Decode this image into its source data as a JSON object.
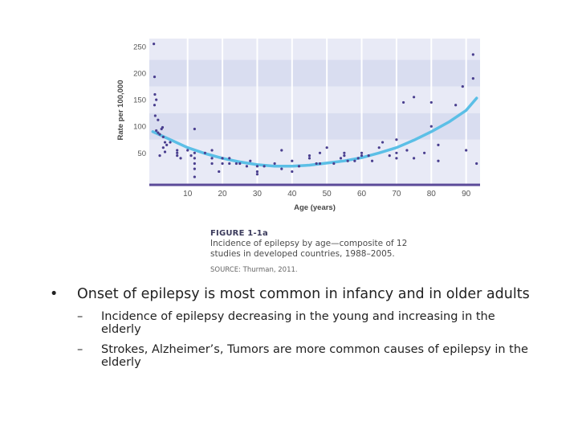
{
  "chart_data": {
    "type": "scatter",
    "ylabel": "Rate per 100,000",
    "xlabel": "Age (years)",
    "x_ticks": [
      10,
      20,
      30,
      40,
      50,
      60,
      70,
      80,
      90
    ],
    "y_ticks": [
      50,
      100,
      150,
      200,
      250
    ],
    "xlim": [
      -1,
      94
    ],
    "ylim": [
      -10,
      265
    ],
    "colors": {
      "band_dark": "#d9ddf0",
      "band_light": "#e8eaf6",
      "grid": "#ffffff",
      "baseline": "#5b4a99",
      "point": "#4a3f8f",
      "trend": "#5bbfe6"
    },
    "series": [
      {
        "type": "scatter",
        "points": [
          [
            0.3,
            255
          ],
          [
            0.5,
            193
          ],
          [
            0.6,
            160
          ],
          [
            0.5,
            140
          ],
          [
            0.7,
            120
          ],
          [
            1.0,
            150
          ],
          [
            1.5,
            112
          ],
          [
            1,
            92
          ],
          [
            1.5,
            88
          ],
          [
            2,
            85
          ],
          [
            2.5,
            95
          ],
          [
            2.8,
            98
          ],
          [
            3,
            80
          ],
          [
            3.5,
            70
          ],
          [
            3,
            60
          ],
          [
            3.5,
            52
          ],
          [
            2,
            45
          ],
          [
            4,
            65
          ],
          [
            5,
            70
          ],
          [
            7,
            55
          ],
          [
            7,
            50
          ],
          [
            7,
            45
          ],
          [
            8,
            40
          ],
          [
            10,
            55
          ],
          [
            11,
            45
          ],
          [
            12,
            95
          ],
          [
            12,
            50
          ],
          [
            12,
            40
          ],
          [
            12,
            30
          ],
          [
            12,
            20
          ],
          [
            12,
            5
          ],
          [
            15,
            50
          ],
          [
            17,
            40
          ],
          [
            17,
            55
          ],
          [
            17,
            30
          ],
          [
            19,
            15
          ],
          [
            20,
            40
          ],
          [
            20,
            30
          ],
          [
            22,
            40
          ],
          [
            22,
            30
          ],
          [
            24,
            30
          ],
          [
            25,
            30
          ],
          [
            27,
            25
          ],
          [
            28,
            35
          ],
          [
            30,
            25
          ],
          [
            30,
            15
          ],
          [
            30,
            10
          ],
          [
            32,
            25
          ],
          [
            35,
            30
          ],
          [
            37,
            20
          ],
          [
            37,
            55
          ],
          [
            40,
            35
          ],
          [
            40,
            15
          ],
          [
            42,
            25
          ],
          [
            45,
            45
          ],
          [
            45,
            40
          ],
          [
            47,
            30
          ],
          [
            48,
            30
          ],
          [
            48,
            50
          ],
          [
            50,
            60
          ],
          [
            52,
            30
          ],
          [
            54,
            40
          ],
          [
            55,
            50
          ],
          [
            55,
            45
          ],
          [
            56,
            35
          ],
          [
            58,
            35
          ],
          [
            59,
            40
          ],
          [
            60,
            50
          ],
          [
            60,
            45
          ],
          [
            62,
            45
          ],
          [
            63,
            35
          ],
          [
            65,
            60
          ],
          [
            66,
            70
          ],
          [
            68,
            45
          ],
          [
            70,
            75
          ],
          [
            70,
            50
          ],
          [
            70,
            40
          ],
          [
            72,
            145
          ],
          [
            73,
            55
          ],
          [
            75,
            155
          ],
          [
            75,
            40
          ],
          [
            78,
            50
          ],
          [
            80,
            145
          ],
          [
            80,
            100
          ],
          [
            82,
            65
          ],
          [
            82,
            35
          ],
          [
            87,
            140
          ],
          [
            89,
            175
          ],
          [
            90,
            55
          ],
          [
            92,
            190
          ],
          [
            92,
            235
          ],
          [
            93,
            30
          ]
        ]
      },
      {
        "type": "line",
        "points": [
          [
            0,
            90
          ],
          [
            5,
            75
          ],
          [
            10,
            60
          ],
          [
            15,
            49
          ],
          [
            20,
            40
          ],
          [
            25,
            33
          ],
          [
            30,
            28
          ],
          [
            35,
            25
          ],
          [
            40,
            25
          ],
          [
            45,
            27
          ],
          [
            50,
            31
          ],
          [
            55,
            35
          ],
          [
            60,
            41
          ],
          [
            65,
            50
          ],
          [
            70,
            60
          ],
          [
            75,
            74
          ],
          [
            80,
            90
          ],
          [
            85,
            108
          ],
          [
            90,
            130
          ],
          [
            93,
            153
          ]
        ]
      }
    ]
  },
  "caption": {
    "figure_label": "FIGURE 1-1a",
    "text": "Incidence of epilepsy by age—composite of 12 studies in developed countries, 1988–2005.",
    "source": "SOURCE: Thurman, 2011."
  },
  "bullets": {
    "main": "Onset of epilepsy is most common in infancy and in older adults",
    "marker": "•",
    "dash": "–",
    "sub": [
      "Incidence of epilepsy decreasing in the young and increasing in the elderly",
      "Strokes, Alzheimer’s, Tumors are more common causes of epilepsy in the elderly"
    ]
  }
}
